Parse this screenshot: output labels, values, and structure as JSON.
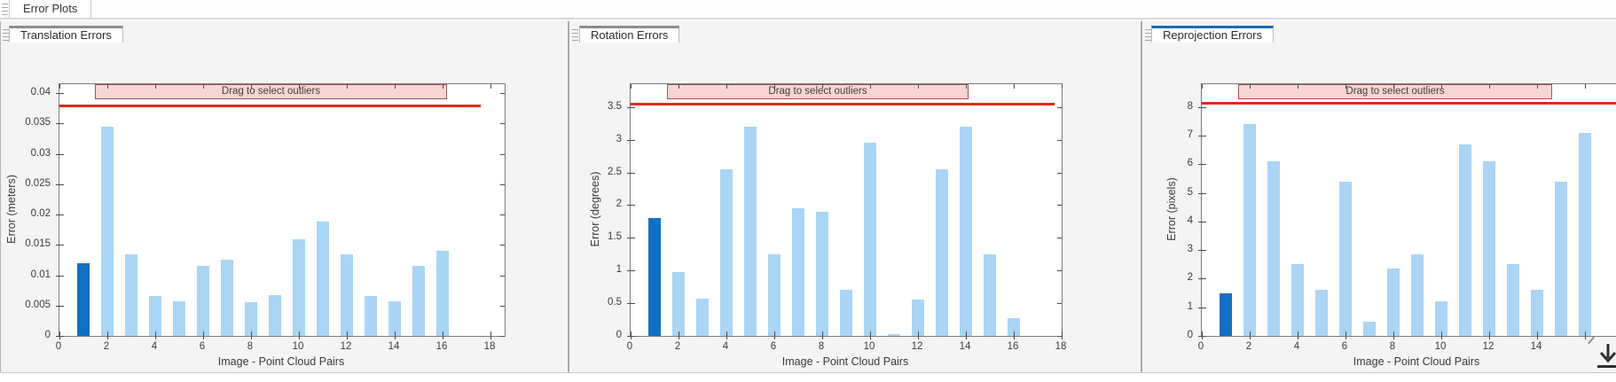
{
  "app": {
    "main_tab": "Error Plots"
  },
  "panels": [
    {
      "tab_label": "Translation Errors",
      "active": false
    },
    {
      "tab_label": "Rotation Errors",
      "active": false
    },
    {
      "tab_label": "Reprojection Errors",
      "active": true
    }
  ],
  "colors": {
    "bar": "#aad5f5",
    "bar_selected": "#1170c1",
    "threshold_line": "#e2291d",
    "band_fill": "#f6d5d4",
    "band_border": "#9c5750",
    "active_tab_accent": "#1a6cb5",
    "inactive_tab_accent": "#8d8d8d"
  },
  "chart_data": [
    {
      "type": "bar",
      "name": "translation-errors",
      "panel_tab": "Translation Errors",
      "xlabel": "Image - Point Cloud Pairs",
      "ylabel": "Error (meters)",
      "x": [
        1,
        2,
        3,
        4,
        5,
        6,
        7,
        8,
        9,
        10,
        11,
        12,
        13,
        14,
        15,
        16
      ],
      "values": [
        0.012,
        0.0345,
        0.0135,
        0.0066,
        0.0057,
        0.0116,
        0.0126,
        0.0055,
        0.0067,
        0.016,
        0.0188,
        0.0135,
        0.0066,
        0.0057,
        0.0116,
        0.014
      ],
      "selected_bar_x": 1,
      "threshold": 0.038,
      "threshold_x_extent": [
        0,
        17.6
      ],
      "band_label": "Drag to select outliers",
      "band_x_extent": [
        1.5,
        16.2
      ],
      "xlim": [
        0,
        18.6
      ],
      "ylim": [
        0,
        0.0415
      ],
      "xticks": [
        0,
        2,
        4,
        6,
        8,
        10,
        12,
        14,
        16,
        18
      ],
      "xtick_labels": [
        "0",
        "2",
        "4",
        "6",
        "8",
        "10",
        "12",
        "14",
        "16",
        "18"
      ],
      "ytick_values": [
        0,
        0.005,
        0.01,
        0.015,
        0.02,
        0.025,
        0.03,
        0.035,
        0.04
      ],
      "ytick_labels": [
        "0",
        "0.005",
        "0.01",
        "0.015",
        "0.02",
        "0.025",
        "0.03",
        "0.035",
        "0.04"
      ],
      "grid": false,
      "legend": null
    },
    {
      "type": "bar",
      "name": "rotation-errors",
      "panel_tab": "Rotation Errors",
      "xlabel": "Image - Point Cloud Pairs",
      "ylabel": "Error (degrees)",
      "x": [
        1,
        2,
        3,
        4,
        5,
        6,
        7,
        8,
        9,
        10,
        11,
        12,
        13,
        14,
        15,
        16
      ],
      "values": [
        1.8,
        0.98,
        0.57,
        2.55,
        3.2,
        1.25,
        1.95,
        1.9,
        0.7,
        2.95,
        0.03,
        0.55,
        2.55,
        3.2,
        1.25,
        0.27
      ],
      "selected_bar_x": 1,
      "threshold": 3.55,
      "threshold_x_extent": [
        0,
        17.7
      ],
      "band_label": "Drag to select outliers",
      "band_x_extent": [
        1.5,
        14.1
      ],
      "xlim": [
        0,
        18
      ],
      "ylim": [
        0,
        3.85
      ],
      "xticks": [
        0,
        2,
        4,
        6,
        8,
        10,
        12,
        14,
        16,
        18
      ],
      "xtick_labels": [
        "0",
        "2",
        "4",
        "6",
        "8",
        "10",
        "12",
        "14",
        "16",
        "18"
      ],
      "ytick_values": [
        0,
        0.5,
        1,
        1.5,
        2,
        2.5,
        3,
        3.5
      ],
      "ytick_labels": [
        "0",
        "0.5",
        "1",
        "1.5",
        "2",
        "2.5",
        "3",
        "3.5"
      ],
      "grid": false,
      "legend": null
    },
    {
      "type": "bar",
      "name": "reprojection-errors",
      "panel_tab": "Reprojection Errors",
      "xlabel": "Image - Point Cloud Pairs",
      "ylabel": "Error (pixels)",
      "x": [
        1,
        2,
        3,
        4,
        5,
        6,
        7,
        8,
        9,
        10,
        11,
        12,
        13,
        14,
        15,
        16
      ],
      "values": [
        1.5,
        7.4,
        6.1,
        2.5,
        1.6,
        5.4,
        0.5,
        2.35,
        2.85,
        1.2,
        6.7,
        6.1,
        2.5,
        1.6,
        5.4,
        7.1
      ],
      "selected_bar_x": 1,
      "threshold": 8.15,
      "threshold_x_extent": [
        0,
        18
      ],
      "band_label": "Drag to select outliers",
      "band_x_extent": [
        1.5,
        14.6
      ],
      "xlim": [
        0,
        18
      ],
      "ylim": [
        0,
        8.8
      ],
      "xticks": [
        0,
        2,
        4,
        6,
        8,
        10,
        12,
        14,
        16
      ],
      "xtick_labels": [
        "0",
        "2",
        "4",
        "6",
        "8",
        "10",
        "12",
        "14",
        ""
      ],
      "ytick_values": [
        0,
        1,
        2,
        3,
        4,
        5,
        6,
        7,
        8
      ],
      "ytick_labels": [
        "0",
        "1",
        "2",
        "3",
        "4",
        "5",
        "6",
        "7",
        "8"
      ],
      "grid": false,
      "legend": null
    }
  ]
}
